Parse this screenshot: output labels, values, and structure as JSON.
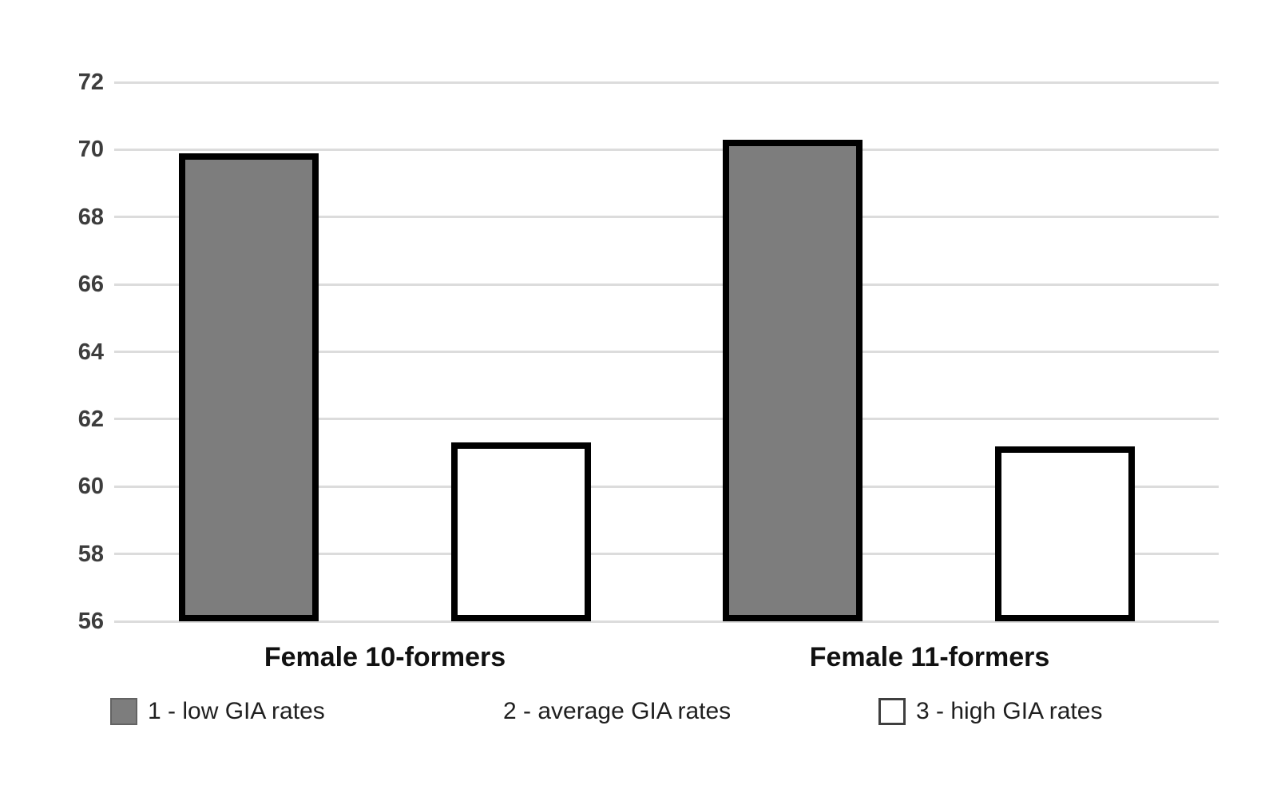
{
  "chart_data": {
    "type": "bar",
    "title": "",
    "xlabel": "",
    "ylabel": "",
    "categories": [
      "Female 10-formers",
      "Female 11-formers"
    ],
    "series": [
      {
        "name": "1 - low GIA rates",
        "fill": "#7d7d7d",
        "border": "#000000",
        "values": [
          69.9,
          70.3
        ]
      },
      {
        "name": "3 - high GIA rates",
        "fill": "#ffffff",
        "border": "#000000",
        "values": [
          61.3,
          61.2
        ]
      }
    ],
    "ylim": [
      56,
      72
    ],
    "yticks": [
      56,
      58,
      60,
      62,
      64,
      66,
      68,
      70,
      72
    ],
    "grid": true,
    "gridline_color": "#dcdcdc",
    "legend_position": "bottom"
  },
  "legend": {
    "items": [
      {
        "label": "1 - low GIA rates",
        "swatch": "gray"
      },
      {
        "label": "2 - average GIA rates",
        "swatch": "none"
      },
      {
        "label": "3 - high GIA rates",
        "swatch": "white"
      }
    ]
  },
  "colors": {
    "bar_gray": "#7d7d7d",
    "bar_white": "#ffffff",
    "bar_border": "#000000",
    "gridline": "#dcdcdc",
    "tick_text": "#3d3d3d",
    "label_text": "#111111",
    "background": "#ffffff"
  }
}
